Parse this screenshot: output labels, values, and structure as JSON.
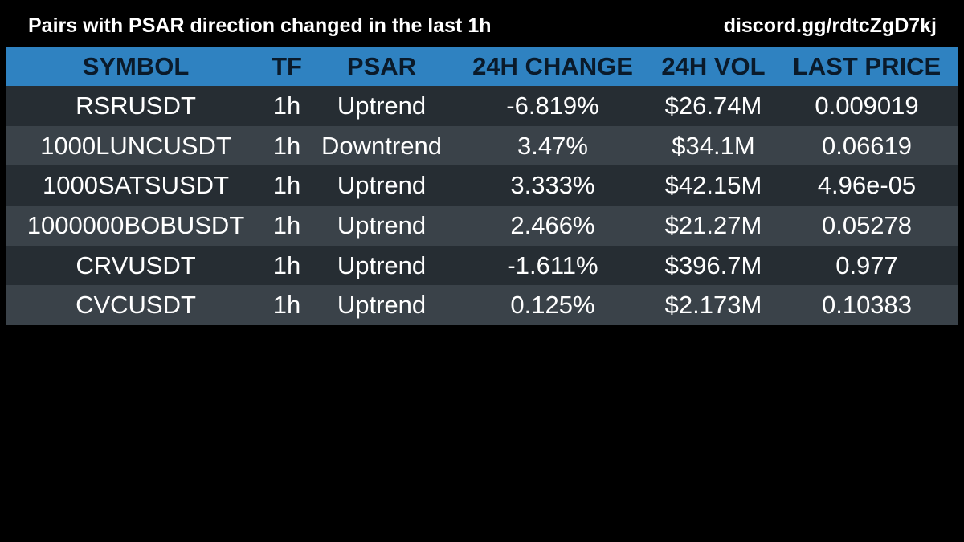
{
  "header": {
    "title": "Pairs with PSAR direction changed in the last 1h",
    "invite": "discord.gg/rdtcZgD7kj"
  },
  "colors": {
    "background": "#000000",
    "header_row": "#2f82c1",
    "row_dark": "#262d33",
    "row_light": "#3a4249",
    "text": "#ffffff",
    "header_text": "#0a1a2a"
  },
  "table": {
    "columns": [
      "SYMBOL",
      "TF",
      "PSAR",
      "24H CHANGE",
      "24H VOL",
      "LAST PRICE"
    ],
    "rows": [
      [
        "RSRUSDT",
        "1h",
        "Uptrend",
        "-6.819%",
        "$26.74M",
        "0.009019"
      ],
      [
        "1000LUNCUSDT",
        "1h",
        "Downtrend",
        "3.47%",
        "$34.1M",
        "0.06619"
      ],
      [
        "1000SATSUSDT",
        "1h",
        "Uptrend",
        "3.333%",
        "$42.15M",
        "4.96e-05"
      ],
      [
        "1000000BOBUSDT",
        "1h",
        "Uptrend",
        "2.466%",
        "$21.27M",
        "0.05278"
      ],
      [
        "CRVUSDT",
        "1h",
        "Uptrend",
        "-1.611%",
        "$396.7M",
        "0.977"
      ],
      [
        "CVCUSDT",
        "1h",
        "Uptrend",
        "0.125%",
        "$2.173M",
        "0.10383"
      ]
    ]
  }
}
